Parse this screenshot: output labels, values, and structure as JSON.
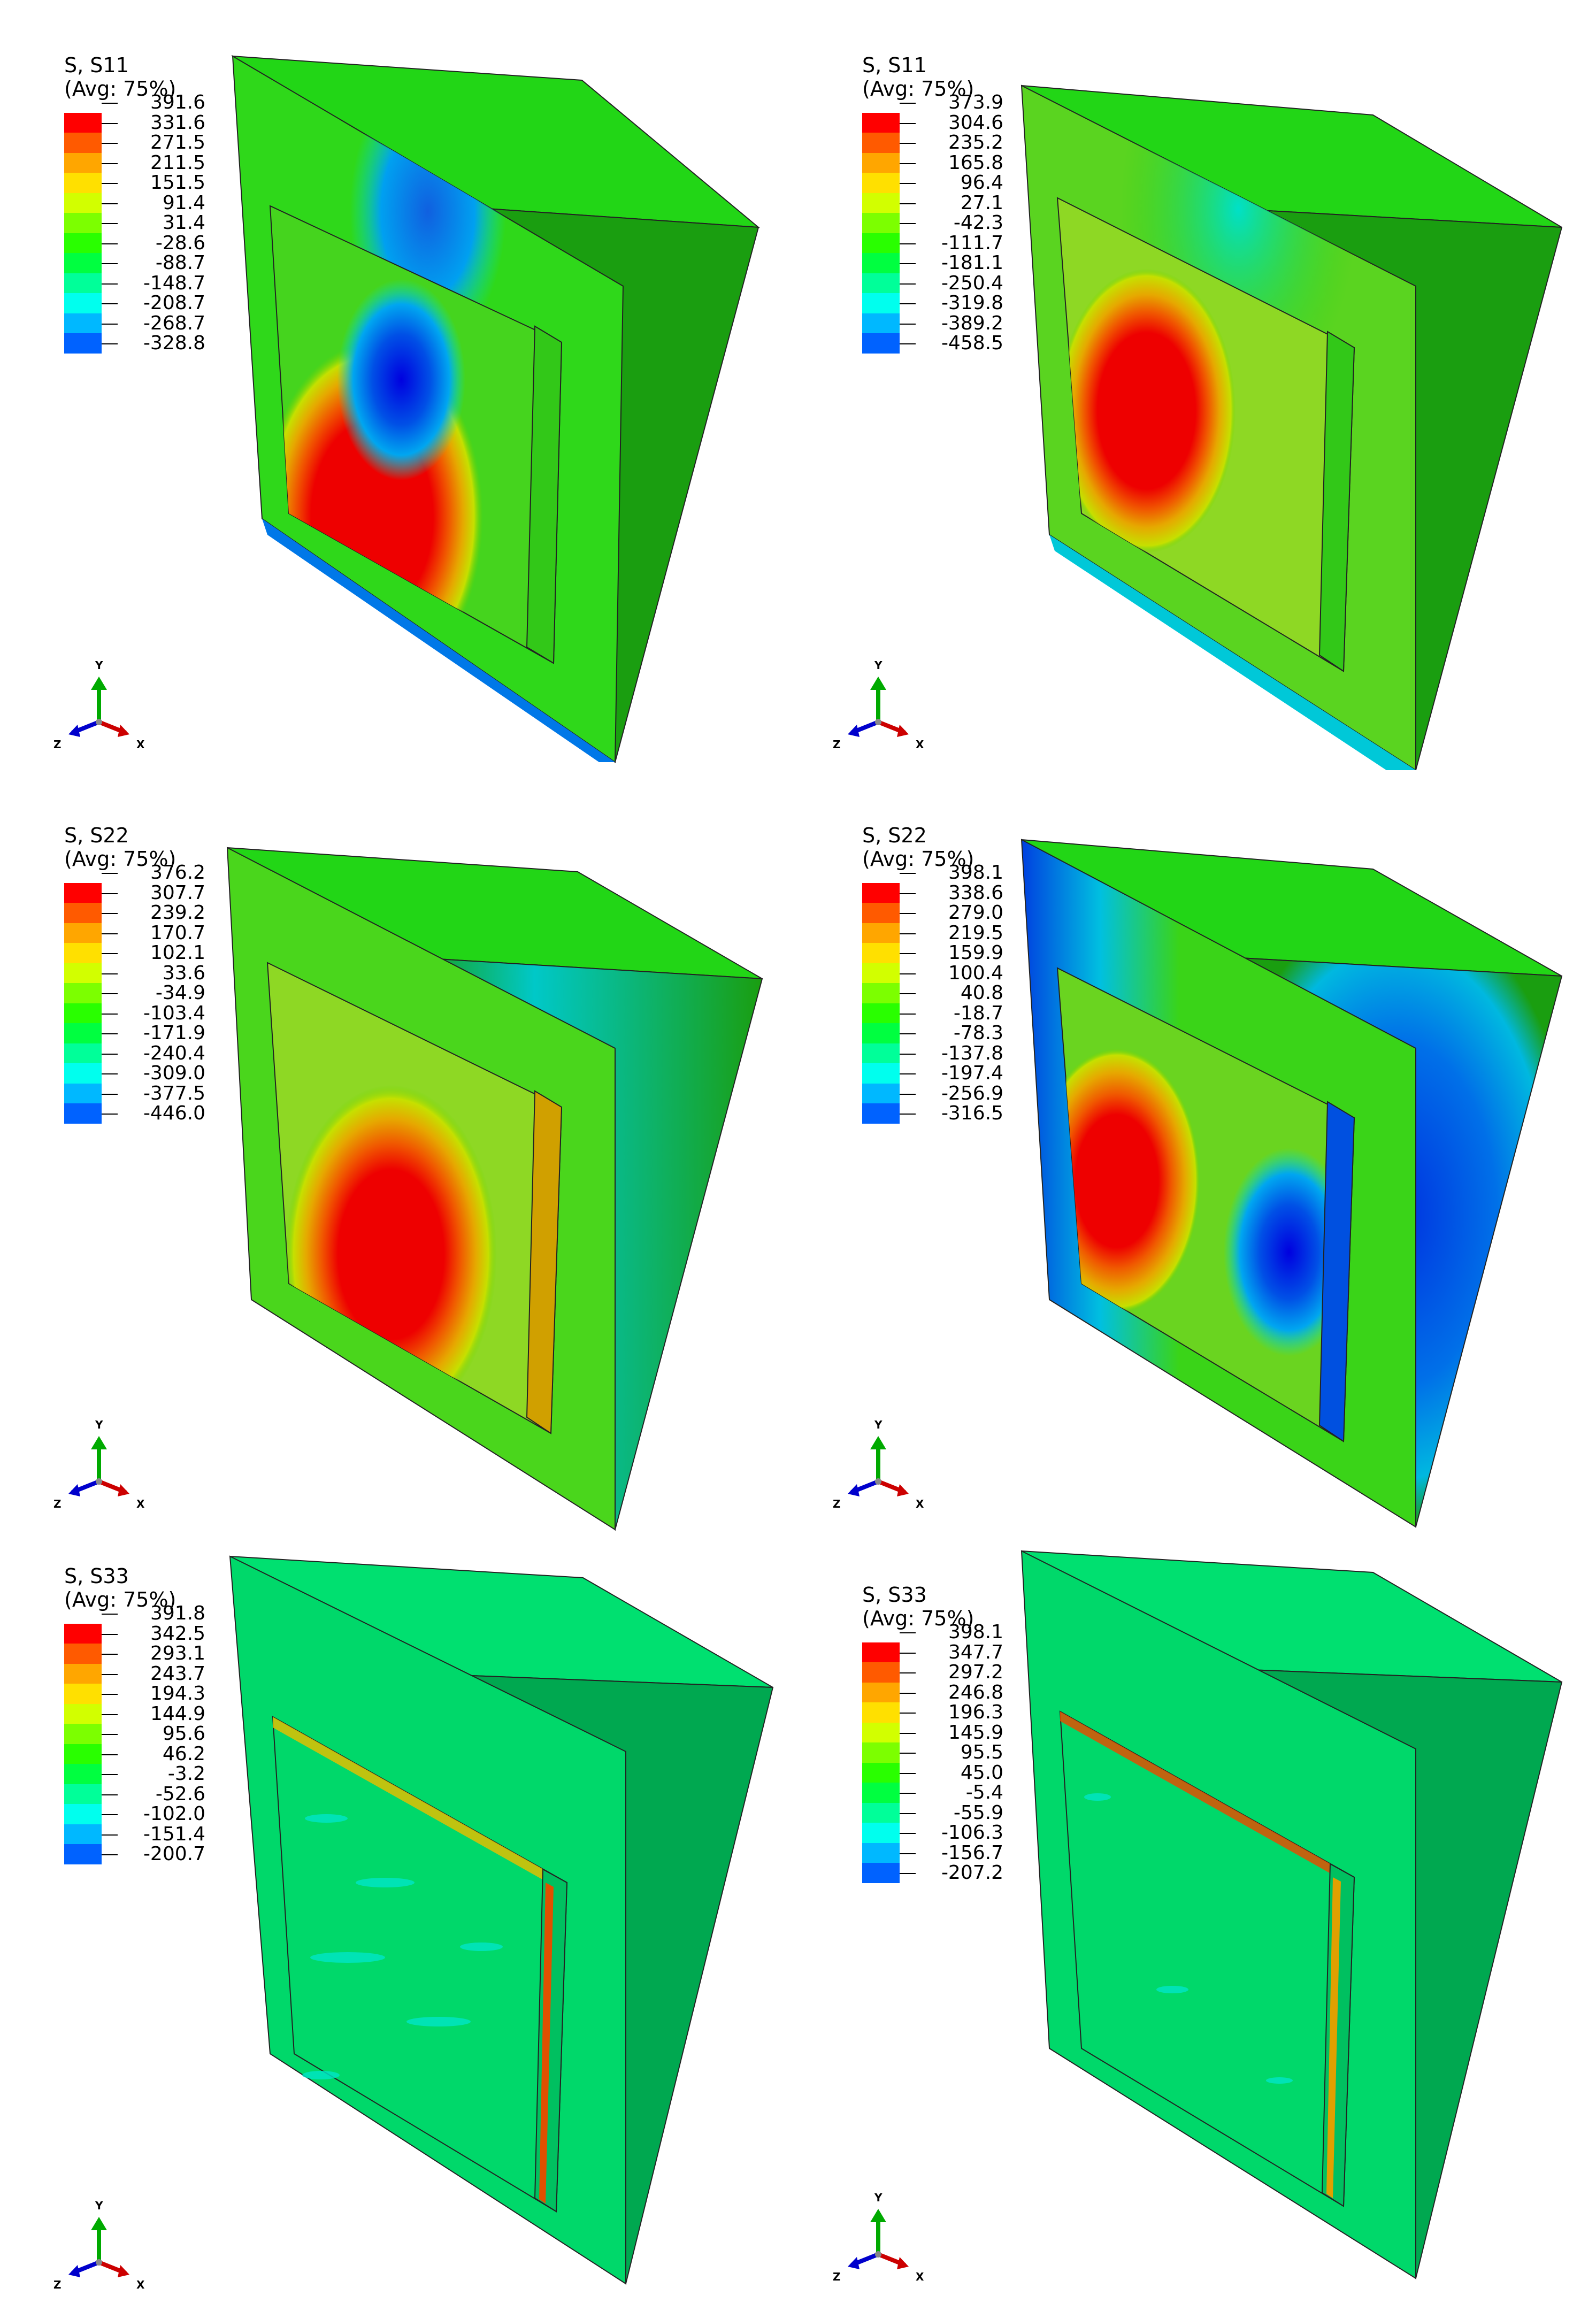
{
  "panels": [
    {
      "id": "s11-left",
      "title_line1": "S, S11",
      "title_line2": "(Avg: 75%)",
      "scale": [
        "391.6",
        "331.6",
        "271.5",
        "211.5",
        "151.5",
        "91.4",
        "31.4",
        "-28.6",
        "-88.7",
        "-148.7",
        "-208.7",
        "-268.7",
        "-328.8"
      ],
      "triad": {
        "y": "Y",
        "z": "Z",
        "x": "X"
      }
    },
    {
      "id": "s11-right",
      "title_line1": "S, S11",
      "title_line2": "(Avg: 75%)",
      "scale": [
        "373.9",
        "304.6",
        "235.2",
        "165.8",
        "96.4",
        "27.1",
        "-42.3",
        "-111.7",
        "-181.1",
        "-250.4",
        "-319.8",
        "-389.2",
        "-458.5"
      ],
      "triad": {
        "y": "Y",
        "z": "Z",
        "x": "X"
      }
    },
    {
      "id": "s22-left",
      "title_line1": "S, S22",
      "title_line2": "(Avg: 75%)",
      "scale": [
        "376.2",
        "307.7",
        "239.2",
        "170.7",
        "102.1",
        "33.6",
        "-34.9",
        "-103.4",
        "-171.9",
        "-240.4",
        "-309.0",
        "-377.5",
        "-446.0"
      ],
      "triad": {
        "y": "Y",
        "z": "Z",
        "x": "X"
      }
    },
    {
      "id": "s22-right",
      "title_line1": "S, S22",
      "title_line2": "(Avg: 75%)",
      "scale": [
        "398.1",
        "338.6",
        "279.0",
        "219.5",
        "159.9",
        "100.4",
        "40.8",
        "-18.7",
        "-78.3",
        "-137.8",
        "-197.4",
        "-256.9",
        "-316.5"
      ],
      "triad": {
        "y": "Y",
        "z": "Z",
        "x": "X"
      }
    },
    {
      "id": "s33-left",
      "title_line1": "S, S33",
      "title_line2": "(Avg: 75%)",
      "scale": [
        "391.8",
        "342.5",
        "293.1",
        "243.7",
        "194.3",
        "144.9",
        "95.6",
        "46.2",
        "-3.2",
        "-52.6",
        "-102.0",
        "-151.4",
        "-200.7"
      ],
      "triad": {
        "y": "Y",
        "z": "Z",
        "x": "X"
      }
    },
    {
      "id": "s33-right",
      "title_line1": "S, S33",
      "title_line2": "(Avg: 75%)",
      "scale": [
        "398.1",
        "347.7",
        "297.2",
        "246.8",
        "196.3",
        "145.9",
        "95.5",
        "45.0",
        "-5.4",
        "-55.9",
        "-106.3",
        "-156.7",
        "-207.2"
      ],
      "triad": {
        "y": "Y",
        "z": "Z",
        "x": "X"
      }
    }
  ],
  "colormap": [
    "#ff0000",
    "#ff5a00",
    "#ffa600",
    "#ffe000",
    "#d2ff00",
    "#7cff00",
    "#29ff00",
    "#00ff40",
    "#00ff99",
    "#00ffee",
    "#00b8ff",
    "#0062ff",
    "#0000ff"
  ]
}
